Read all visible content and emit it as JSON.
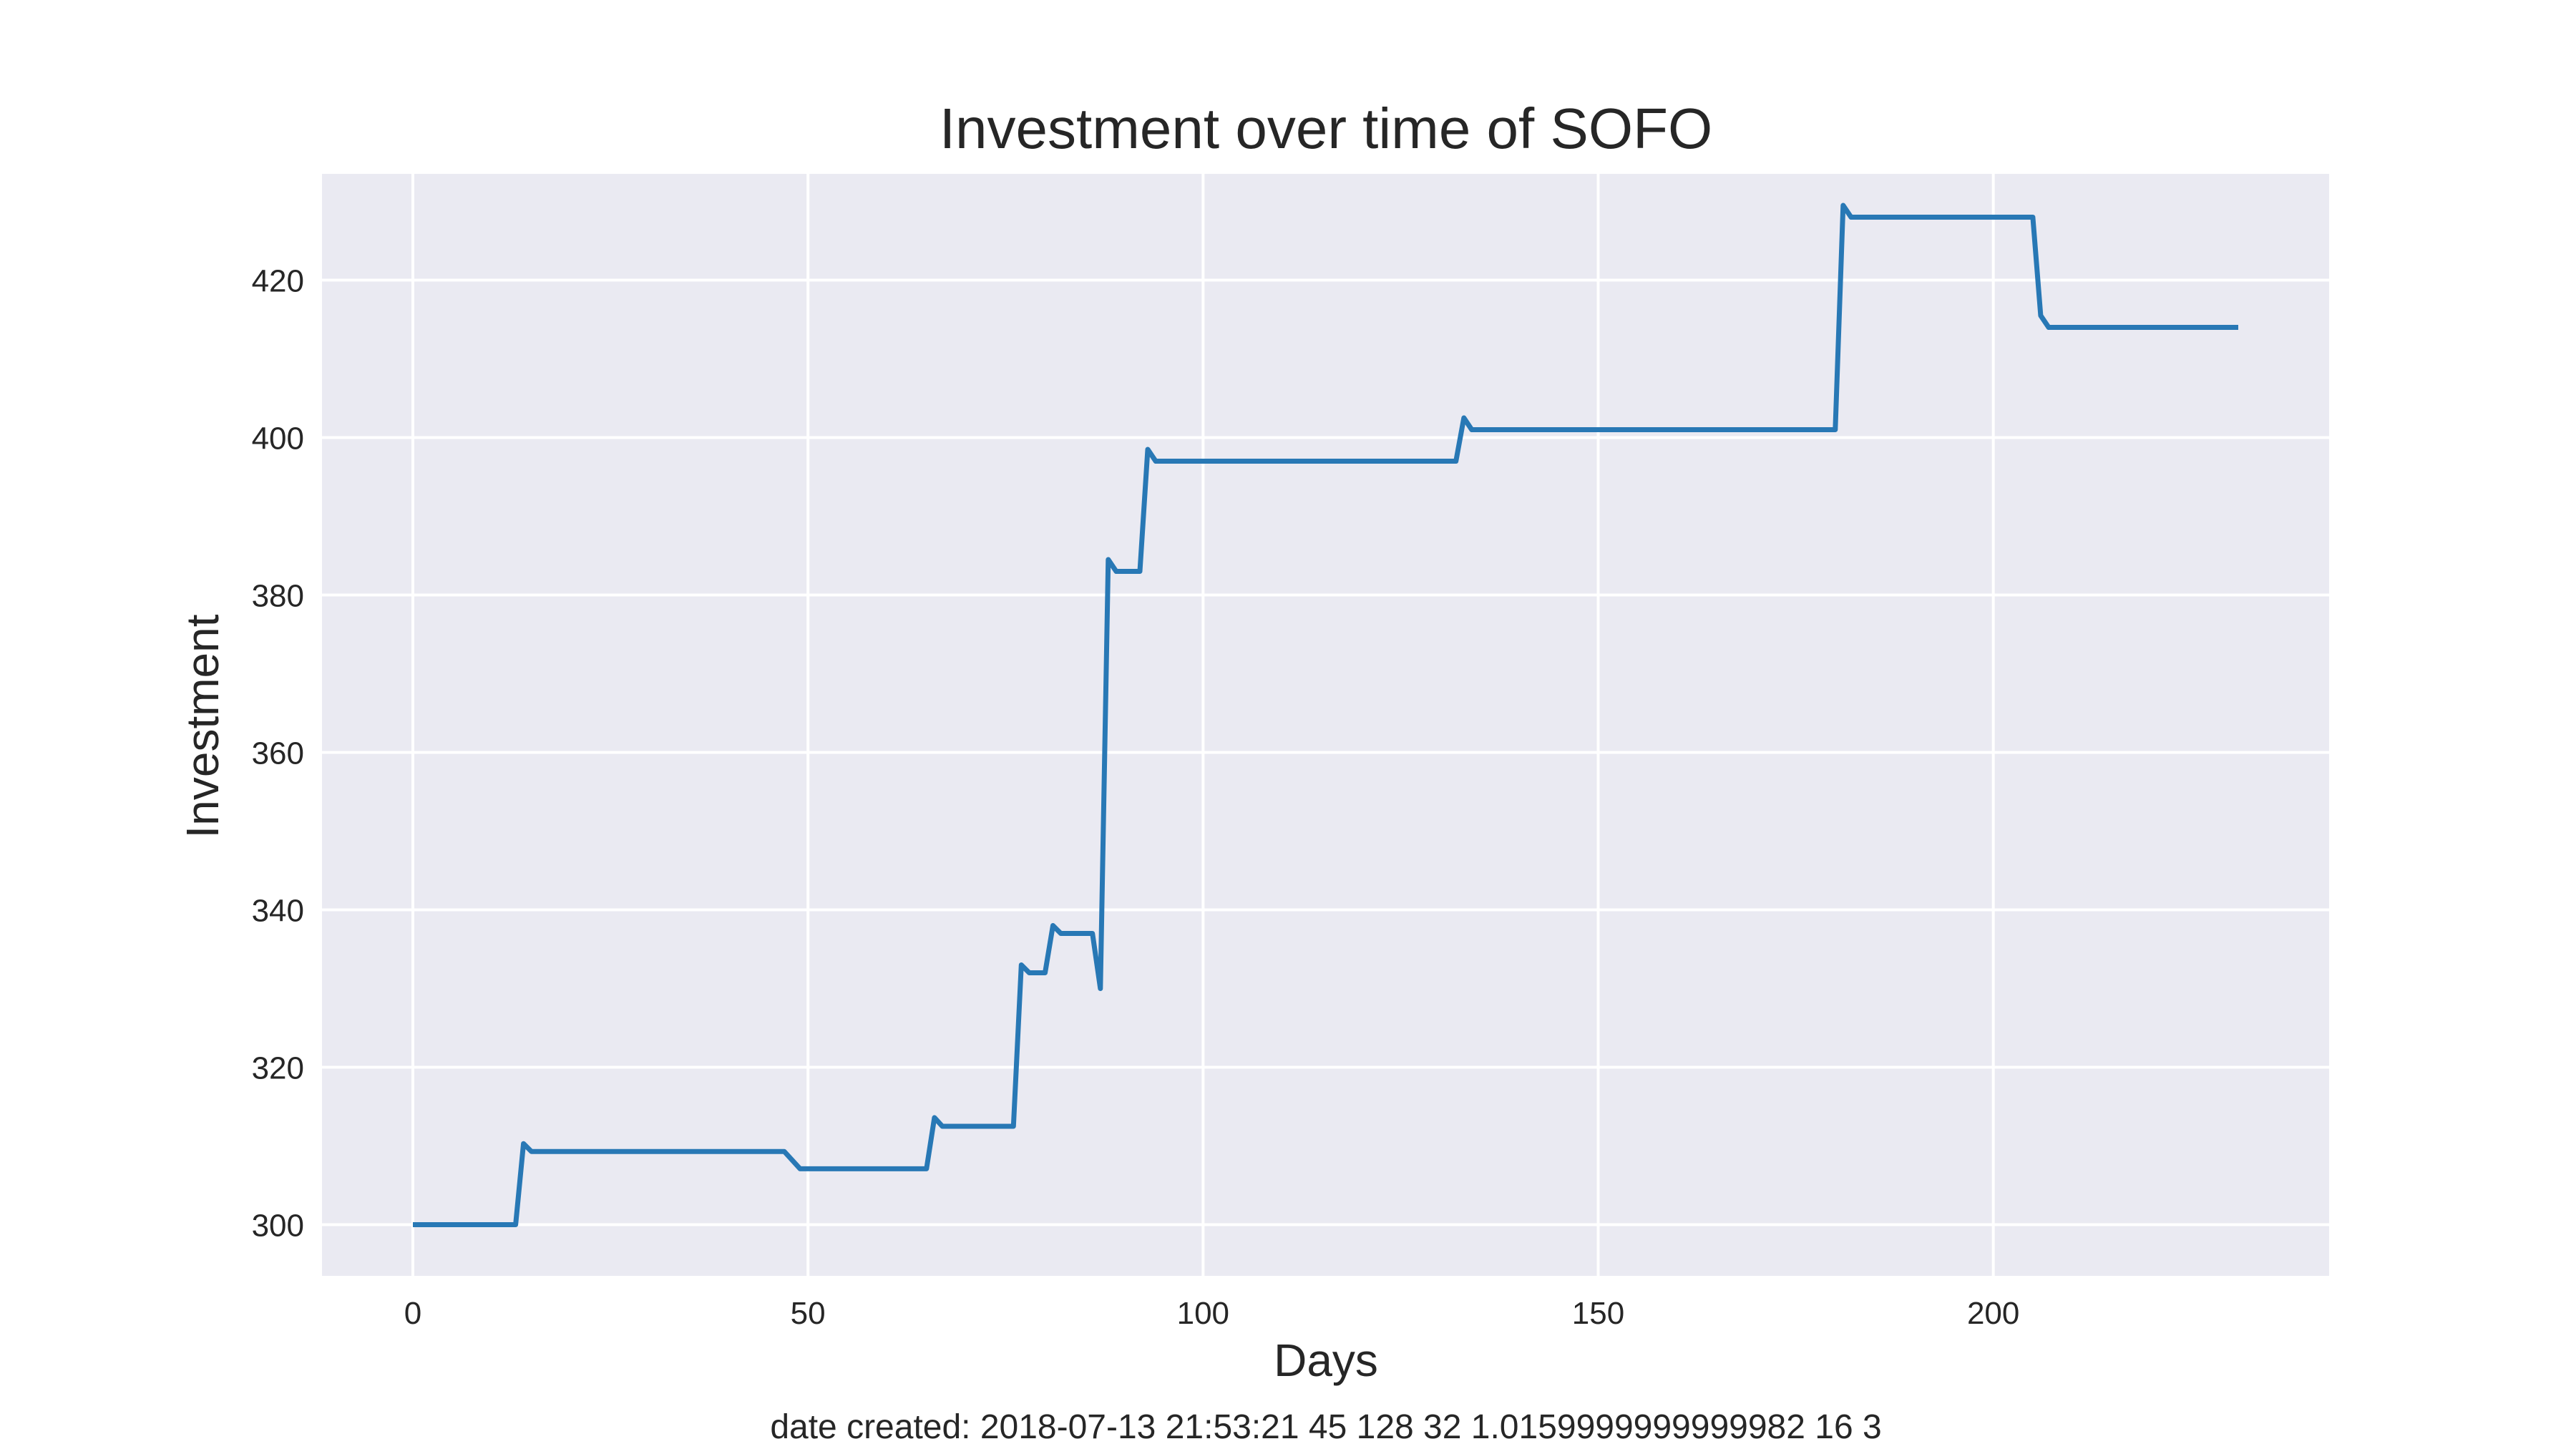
{
  "chart_data": {
    "type": "line",
    "title": "Investment over time of SOFO",
    "xlabel": "Days",
    "ylabel": "Investment",
    "caption": "date created: 2018-07-13 21:53:21 45 128 32 1.0159999999999982 16 3",
    "xlim": [
      -11.5,
      242.5
    ],
    "ylim": [
      293.5,
      433.5
    ],
    "xticks": [
      0,
      50,
      100,
      150,
      200
    ],
    "yticks": [
      300,
      320,
      340,
      360,
      380,
      400,
      420
    ],
    "xtick_labels": [
      "0",
      "50",
      "100",
      "150",
      "200"
    ],
    "ytick_labels": [
      "300",
      "320",
      "340",
      "360",
      "380",
      "400",
      "420"
    ],
    "grid": true,
    "series": [
      {
        "color": "#2878b5",
        "x": [
          0,
          13,
          14,
          15,
          47,
          49,
          65,
          66,
          67,
          76,
          77,
          78,
          80,
          81,
          82,
          86,
          87,
          88,
          89,
          92,
          93,
          94,
          132,
          133,
          134,
          180,
          181,
          182,
          205,
          206,
          207,
          231
        ],
        "y": [
          300,
          300,
          310.3,
          309.3,
          309.3,
          307.1,
          307.1,
          313.6,
          312.5,
          312.5,
          333,
          332,
          332,
          338,
          337,
          337,
          330,
          384.5,
          383,
          383,
          398.5,
          397,
          397,
          402.5,
          401,
          401,
          429.5,
          428,
          428,
          415.5,
          414,
          414
        ]
      }
    ]
  }
}
